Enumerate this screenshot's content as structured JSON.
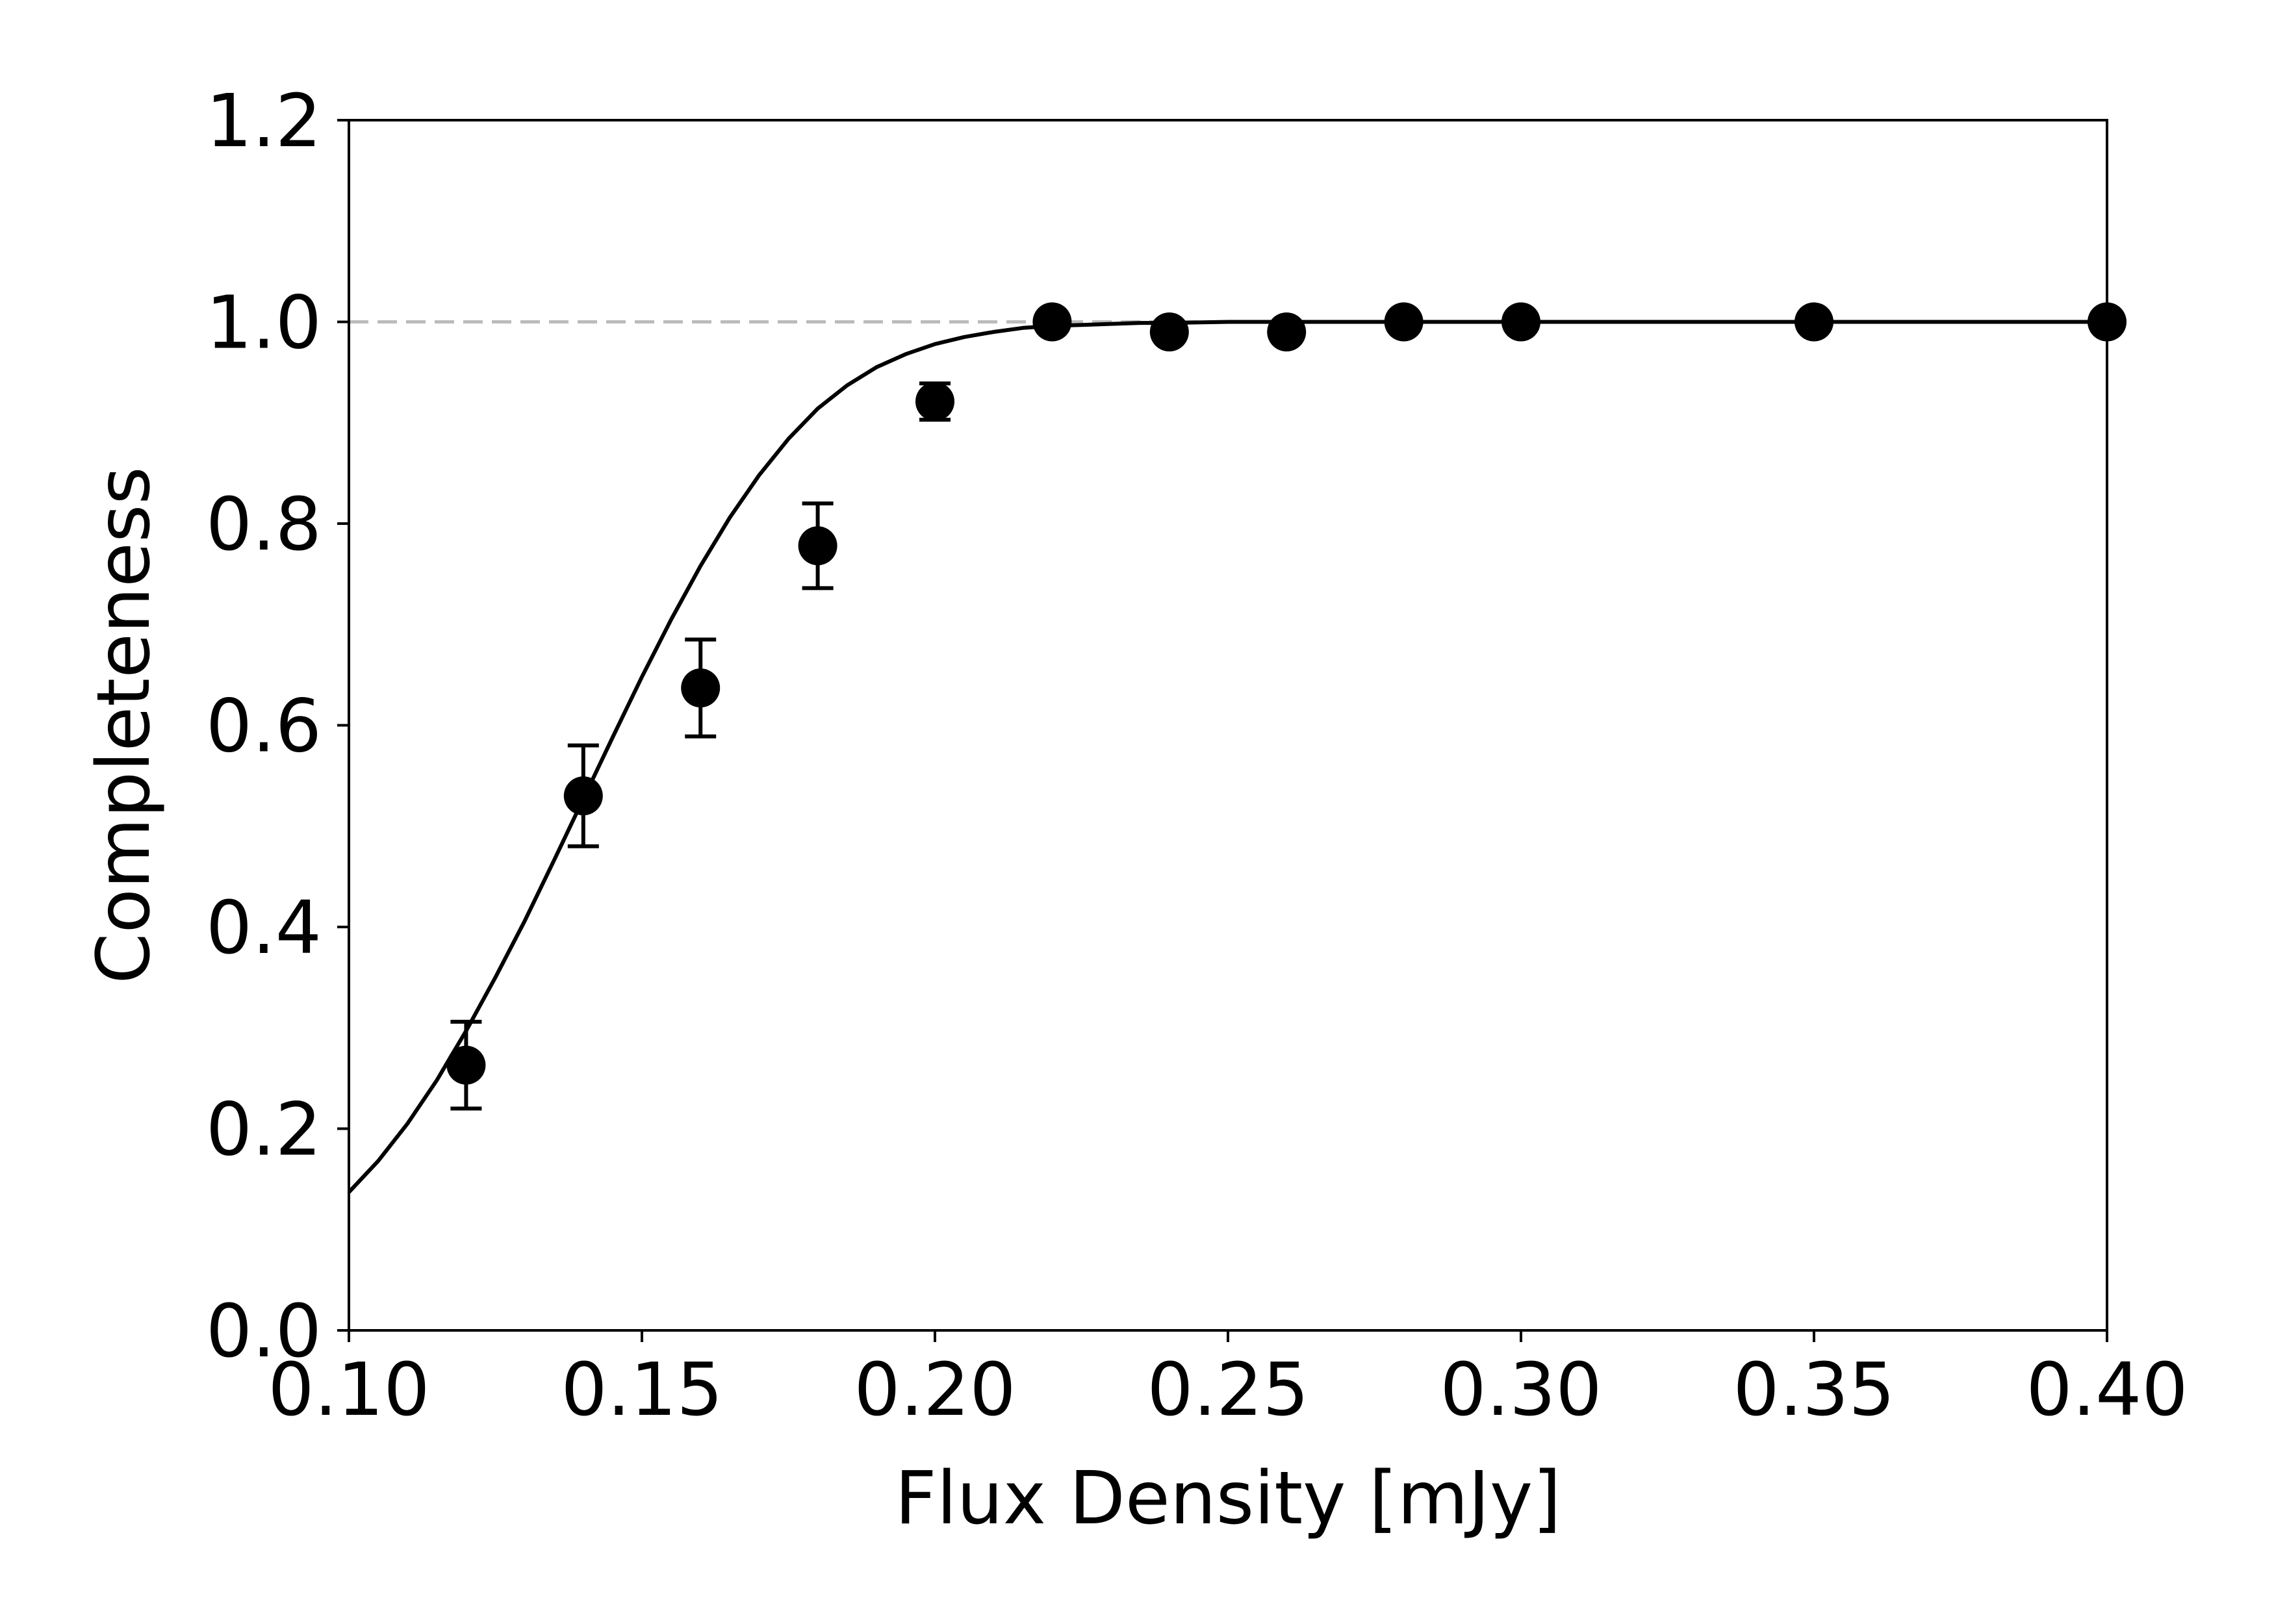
{
  "chart_data": {
    "type": "scatter",
    "xlabel": "Flux Density [mJy]",
    "ylabel": "Completeness",
    "xlim": [
      0.1,
      0.4
    ],
    "ylim": [
      0.0,
      1.2
    ],
    "xticks": [
      "0.10",
      "0.15",
      "0.20",
      "0.25",
      "0.30",
      "0.35",
      "0.40"
    ],
    "yticks": [
      "0.0",
      "0.2",
      "0.4",
      "0.6",
      "0.8",
      "1.0",
      "1.2"
    ],
    "grid": false,
    "reference_line": {
      "y": 1.0,
      "style": "dashed",
      "color": "#bbbbbb"
    },
    "series": [
      {
        "kind": "points_with_errorbars",
        "color": "#000000",
        "points": [
          {
            "x": 0.12,
            "y": 0.263,
            "err": 0.043
          },
          {
            "x": 0.14,
            "y": 0.53,
            "err": 0.05
          },
          {
            "x": 0.16,
            "y": 0.637,
            "err": 0.048
          },
          {
            "x": 0.18,
            "y": 0.778,
            "err": 0.042
          },
          {
            "x": 0.2,
            "y": 0.921,
            "err": 0.018
          },
          {
            "x": 0.22,
            "y": 1.0,
            "err": 0
          },
          {
            "x": 0.24,
            "y": 0.99,
            "err": 0
          },
          {
            "x": 0.26,
            "y": 0.99,
            "err": 0
          },
          {
            "x": 0.28,
            "y": 1.0,
            "err": 0
          },
          {
            "x": 0.3,
            "y": 1.0,
            "err": 0
          },
          {
            "x": 0.35,
            "y": 1.0,
            "err": 0
          },
          {
            "x": 0.4,
            "y": 1.0,
            "err": 0
          }
        ]
      },
      {
        "kind": "fit_curve",
        "color": "#000000",
        "x": [
          0.1,
          0.105,
          0.11,
          0.115,
          0.12,
          0.125,
          0.13,
          0.135,
          0.14,
          0.145,
          0.15,
          0.155,
          0.16,
          0.165,
          0.17,
          0.175,
          0.18,
          0.185,
          0.19,
          0.195,
          0.2,
          0.205,
          0.21,
          0.215,
          0.22,
          0.225,
          0.23,
          0.235,
          0.24,
          0.25,
          0.26,
          0.27,
          0.28,
          0.3,
          0.35,
          0.4
        ],
        "y": [
          0.137,
          0.168,
          0.205,
          0.248,
          0.297,
          0.35,
          0.406,
          0.466,
          0.527,
          0.588,
          0.648,
          0.705,
          0.758,
          0.806,
          0.848,
          0.884,
          0.914,
          0.937,
          0.955,
          0.968,
          0.978,
          0.985,
          0.99,
          0.994,
          0.996,
          0.997,
          0.998,
          0.999,
          0.999,
          1.0,
          1.0,
          1.0,
          1.0,
          1.0,
          1.0,
          1.0
        ]
      }
    ]
  }
}
